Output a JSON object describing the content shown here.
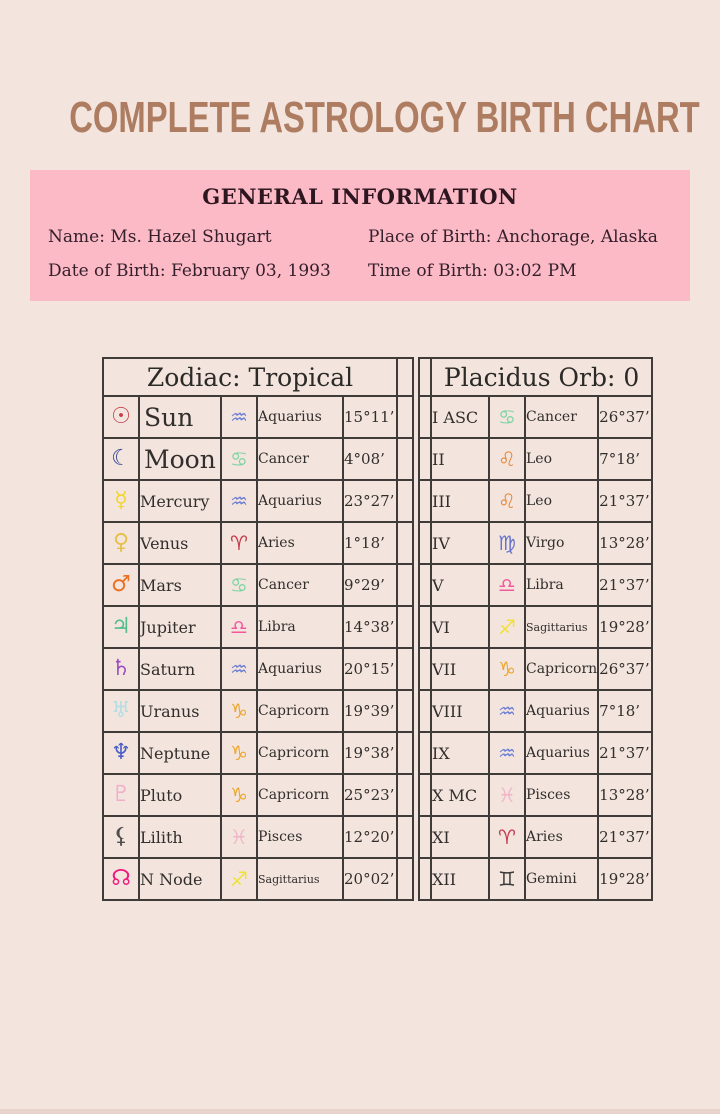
{
  "page": {
    "title": "COMPLETE ASTROLOGY BIRTH CHART"
  },
  "general_info": {
    "heading": "GENERAL INFORMATION",
    "name": "Name: Ms. Hazel Shugart",
    "date_of_birth": "Date of Birth: February 03, 1993",
    "place_of_birth": "Place of Birth: Anchorage, Alaska",
    "time_of_birth": "Time of Birth: 03:02 PM"
  },
  "zodiac_table": {
    "header": "Zodiac: Tropical",
    "rows": [
      {
        "planet": "Sun",
        "planet_icon": "sun-icon",
        "planet_glyph": "☉",
        "sign": "Aquarius",
        "sign_icon": "aquarius-icon",
        "sign_glyph": "♒",
        "degrees": "15°11’"
      },
      {
        "planet": "Moon",
        "planet_icon": "moon-icon",
        "planet_glyph": "☾",
        "sign": "Cancer",
        "sign_icon": "cancer-icon",
        "sign_glyph": "♋",
        "degrees": "4°08’"
      },
      {
        "planet": "Mercury",
        "planet_icon": "mercury-icon",
        "planet_glyph": "☿",
        "sign": "Aquarius",
        "sign_icon": "aquarius-icon",
        "sign_glyph": "♒",
        "degrees": "23°27’"
      },
      {
        "planet": "Venus",
        "planet_icon": "venus-icon",
        "planet_glyph": "♀",
        "sign": "Aries",
        "sign_icon": "aries-icon",
        "sign_glyph": "♈",
        "degrees": "1°18’"
      },
      {
        "planet": "Mars",
        "planet_icon": "mars-icon",
        "planet_glyph": "♂",
        "sign": "Cancer",
        "sign_icon": "cancer-icon",
        "sign_glyph": "♋",
        "degrees": "9°29’"
      },
      {
        "planet": "Jupiter",
        "planet_icon": "jupiter-icon",
        "planet_glyph": "♃",
        "sign": "Libra",
        "sign_icon": "libra-icon",
        "sign_glyph": "♎",
        "degrees": "14°38’"
      },
      {
        "planet": "Saturn",
        "planet_icon": "saturn-icon",
        "planet_glyph": "♄",
        "sign": "Aquarius",
        "sign_icon": "aquarius-icon",
        "sign_glyph": "♒",
        "degrees": "20°15’"
      },
      {
        "planet": "Uranus",
        "planet_icon": "uranus-icon",
        "planet_glyph": "♅",
        "sign": "Capricorn",
        "sign_icon": "capricorn-icon",
        "sign_glyph": "♑",
        "degrees": "19°39’"
      },
      {
        "planet": "Neptune",
        "planet_icon": "neptune-icon",
        "planet_glyph": "♆",
        "sign": "Capricorn",
        "sign_icon": "capricorn-icon",
        "sign_glyph": "♑",
        "degrees": "19°38’"
      },
      {
        "planet": "Pluto",
        "planet_icon": "pluto-icon",
        "planet_glyph": "♇",
        "sign": "Capricorn",
        "sign_icon": "capricorn-icon",
        "sign_glyph": "♑",
        "degrees": "25°23’"
      },
      {
        "planet": "Lilith",
        "planet_icon": "lilith-icon",
        "planet_glyph": "⚸",
        "sign": "Pisces",
        "sign_icon": "pisces-icon",
        "sign_glyph": "♓",
        "degrees": "12°20’"
      },
      {
        "planet": "N Node",
        "planet_icon": "north-node-icon",
        "planet_glyph": "☊",
        "sign": "Sagittarius",
        "sign_icon": "sagittarius-icon",
        "sign_glyph": "♐",
        "degrees": "20°02’"
      }
    ]
  },
  "houses_table": {
    "header": "Placidus Orb: 0",
    "rows": [
      {
        "house": "I ASC",
        "sign": "Cancer",
        "sign_icon": "cancer-icon",
        "sign_glyph": "♋",
        "degrees": "26°37’"
      },
      {
        "house": "II",
        "sign": "Leo",
        "sign_icon": "leo-icon",
        "sign_glyph": "♌",
        "degrees": "7°18’"
      },
      {
        "house": "III",
        "sign": "Leo",
        "sign_icon": "leo-icon",
        "sign_glyph": "♌",
        "degrees": "21°37’"
      },
      {
        "house": "IV",
        "sign": "Virgo",
        "sign_icon": "virgo-icon",
        "sign_glyph": "♍",
        "degrees": "13°28’"
      },
      {
        "house": "V",
        "sign": "Libra",
        "sign_icon": "libra-icon",
        "sign_glyph": "♎",
        "degrees": "21°37’"
      },
      {
        "house": "VI",
        "sign": "Sagittarius",
        "sign_icon": "sagittarius-icon",
        "sign_glyph": "♐",
        "degrees": "19°28’"
      },
      {
        "house": "VII",
        "sign": "Capricorn",
        "sign_icon": "capricorn-icon",
        "sign_glyph": "♑",
        "degrees": "26°37’"
      },
      {
        "house": "VIII",
        "sign": "Aquarius",
        "sign_icon": "aquarius-icon",
        "sign_glyph": "♒",
        "degrees": "7°18’"
      },
      {
        "house": "IX",
        "sign": "Aquarius",
        "sign_icon": "aquarius-icon",
        "sign_glyph": "♒",
        "degrees": "21°37’"
      },
      {
        "house": "X MC",
        "sign": "Pisces",
        "sign_icon": "pisces-icon",
        "sign_glyph": "♓",
        "degrees": "13°28’"
      },
      {
        "house": "XI",
        "sign": "Aries",
        "sign_icon": "aries-icon",
        "sign_glyph": "♈",
        "degrees": "21°37’"
      },
      {
        "house": "XII",
        "sign": "Gemini",
        "sign_icon": "gemini-icon",
        "sign_glyph": "♊",
        "degrees": "19°28’"
      }
    ]
  },
  "colors": {
    "background": "#f3e5de",
    "panel_pink": "#fcb9c6",
    "title_brown": "#ad7c61",
    "table_border": "#3f3b38",
    "text_dark": "#31242a",
    "sun": "#c8404a",
    "moon": "#2c3e8f",
    "mercury": "#f2d629",
    "venus": "#e7c04a",
    "mars": "#ed7020",
    "jupiter": "#54bd8e",
    "saturn": "#9b4fc0",
    "uranus": "#b5dee2",
    "neptune": "#4a5cc6",
    "pluto": "#f0afc8",
    "lilith": "#4f4f4f",
    "north_node": "#ee1d80",
    "aquarius": "#6d7fd4",
    "cancer": "#7ed3a2",
    "aries": "#c63b4e",
    "libra": "#f4579c",
    "capricorn": "#eca62f",
    "pisces": "#f2b4c9",
    "sagittarius": "#f0e138",
    "leo": "#e98638",
    "virgo": "#6673c8",
    "gemini": "#3a3a3a"
  }
}
